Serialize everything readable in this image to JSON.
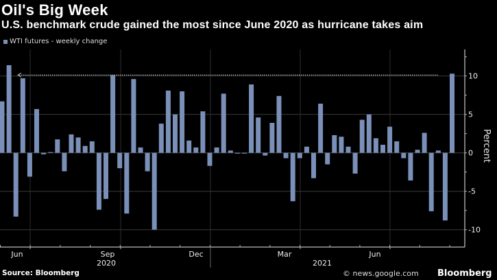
{
  "header": {
    "title": "Oil's Big Week",
    "subtitle": "U.S. benchmark crude gained the most since June 2020 as hurricane takes aim"
  },
  "footer": {
    "source": "Source: Bloomberg",
    "watermark": "© news.google.com",
    "logo": "Bloomberg"
  },
  "colors": {
    "bar": "#7a90b8",
    "background": "#000000",
    "grid": "#3a3a3a"
  },
  "chart_data": {
    "type": "bar",
    "title": "Oil's Big Week",
    "subtitle": "U.S. benchmark crude gained the most since June 2020 as hurricane takes aim",
    "ylabel": "Percent",
    "ylim": [
      -12,
      13
    ],
    "y_ticks": [
      10,
      5,
      0,
      -5,
      -10
    ],
    "y_axis_position": "right",
    "grid": true,
    "legend_position": "top-left",
    "x_tick_labels": [
      "Jun",
      "Sep",
      "Dec",
      "Mar",
      "Jun"
    ],
    "x_year_labels": [
      "2020",
      "2021"
    ],
    "reference_line": {
      "value": 10.3,
      "style": "dotted"
    },
    "series": [
      {
        "name": "WTI futures - weekly change",
        "values": [
          6.7,
          11.4,
          -8.3,
          9.7,
          -3.1,
          5.7,
          -0.2,
          0.1,
          1.75,
          -2.4,
          2.4,
          2.0,
          0.9,
          1.5,
          -7.4,
          -6.0,
          10.1,
          -2.0,
          -7.9,
          9.6,
          0.7,
          -2.4,
          -10.0,
          3.8,
          8.1,
          5.0,
          8.0,
          1.6,
          0.7,
          5.4,
          -1.7,
          0.7,
          7.7,
          0.3,
          -0.1,
          -0.1,
          8.9,
          4.6,
          -0.35,
          3.9,
          7.4,
          -0.7,
          -6.3,
          -0.7,
          0.8,
          -3.3,
          6.4,
          -1.5,
          2.3,
          2.1,
          0.8,
          -2.7,
          4.3,
          5.0,
          1.9,
          1.05,
          3.4,
          1.5,
          -0.7,
          -3.6,
          0.4,
          2.6,
          -7.6,
          0.3,
          -8.8,
          10.3
        ]
      }
    ]
  }
}
